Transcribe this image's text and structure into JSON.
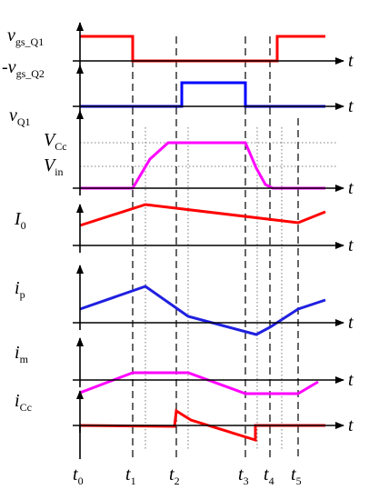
{
  "signals": [
    {
      "symbol": "v",
      "subscript": "gs_Q1",
      "axis_label": "t"
    },
    {
      "prefix": "-",
      "symbol": "v",
      "subscript": "gs_Q2",
      "axis_label": "t"
    },
    {
      "symbol": "v",
      "subscript": "Q1",
      "axis_label": "t"
    },
    {
      "symbol": "I",
      "subscript": "0",
      "axis_label": "t"
    },
    {
      "symbol": "i",
      "subscript": "p",
      "axis_label": "t"
    },
    {
      "symbol": "i",
      "subscript": "m",
      "axis_label": "t"
    },
    {
      "symbol": "i",
      "subscript": "Cc",
      "axis_label": "t"
    }
  ],
  "levels": [
    {
      "symbol": "V",
      "subscript": "Cc"
    },
    {
      "symbol": "V",
      "subscript": "in"
    }
  ],
  "time_marks": [
    {
      "symbol": "t",
      "subscript": "0"
    },
    {
      "symbol": "t",
      "subscript": "1"
    },
    {
      "symbol": "t",
      "subscript": "2"
    },
    {
      "symbol": "t",
      "subscript": "3"
    },
    {
      "symbol": "t",
      "subscript": "4"
    },
    {
      "symbol": "t",
      "subscript": "5"
    }
  ]
}
